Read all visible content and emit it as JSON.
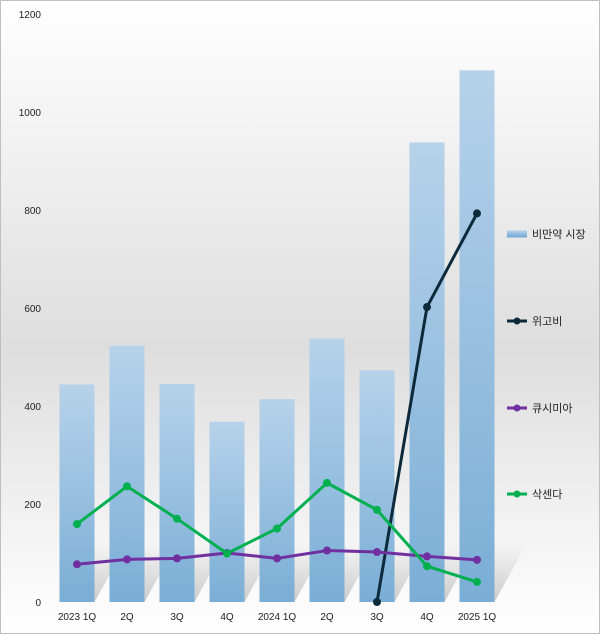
{
  "chart_data": {
    "type": "bar",
    "categories": [
      "2023 1Q",
      "2Q",
      "3Q",
      "4Q",
      "2024 1Q",
      "2Q",
      "3Q",
      "4Q",
      "2025 1Q"
    ],
    "ylim": [
      0,
      1200
    ],
    "yticks": [
      0,
      200,
      400,
      600,
      800,
      1000,
      1200
    ],
    "grid": false,
    "legend_position": "right",
    "series": [
      {
        "name": "비만약 시장",
        "kind": "bar",
        "color": "#7aaed6",
        "values": [
          444,
          523,
          445,
          368,
          414,
          538,
          473,
          938,
          1085
        ]
      },
      {
        "name": "위고비",
        "kind": "line",
        "color": "#0d2a3a",
        "values": [
          null,
          null,
          null,
          null,
          null,
          null,
          0,
          602,
          793
        ]
      },
      {
        "name": "큐시미아",
        "kind": "line",
        "color": "#7030a0",
        "values": [
          77,
          87,
          89,
          100,
          89,
          105,
          102,
          93,
          86
        ]
      },
      {
        "name": "삭센다",
        "kind": "line",
        "color": "#00b050",
        "values": [
          159,
          236,
          170,
          99,
          150,
          243,
          188,
          73,
          41
        ]
      }
    ]
  }
}
